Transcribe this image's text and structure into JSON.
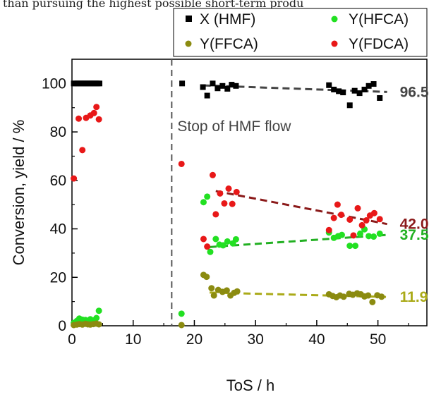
{
  "header_text": "than pursuing the highest possible short-term produ",
  "chart_data": {
    "type": "scatter",
    "xlabel": "ToS / h",
    "ylabel": "Conversion, yield / %",
    "xlim": [
      0,
      58
    ],
    "ylim": [
      0,
      110
    ],
    "x_ticks": [
      "0",
      "10",
      "20",
      "30",
      "40",
      "50"
    ],
    "y_ticks": [
      "0",
      "20",
      "40",
      "60",
      "80",
      "100"
    ],
    "grid": false,
    "legend_position": "top-right",
    "vline": {
      "x": 16.3,
      "label": "Stop of HMF flow"
    },
    "series": [
      {
        "name": "X (HMF)",
        "color": "#000000",
        "marker": "square",
        "points": [
          [
            0.3,
            100
          ],
          [
            0.6,
            100
          ],
          [
            0.9,
            100
          ],
          [
            1.2,
            100
          ],
          [
            1.5,
            100
          ],
          [
            1.8,
            100
          ],
          [
            2.1,
            100
          ],
          [
            2.4,
            100
          ],
          [
            2.7,
            100
          ],
          [
            3.0,
            100
          ],
          [
            3.3,
            100
          ],
          [
            3.6,
            100
          ],
          [
            3.9,
            100
          ],
          [
            4.2,
            100
          ],
          [
            4.5,
            100
          ],
          [
            18.0,
            100
          ],
          [
            21.4,
            98.5
          ],
          [
            22.1,
            95
          ],
          [
            23.0,
            100
          ],
          [
            23.8,
            98
          ],
          [
            24.6,
            99
          ],
          [
            25.4,
            97.8
          ],
          [
            26.1,
            99.5
          ],
          [
            26.8,
            99
          ],
          [
            42.0,
            99.3
          ],
          [
            42.8,
            97.5
          ],
          [
            43.6,
            96.8
          ],
          [
            44.3,
            96.3
          ],
          [
            45.4,
            91
          ],
          [
            46.2,
            97
          ],
          [
            47.0,
            96
          ],
          [
            47.8,
            97.5
          ],
          [
            48.5,
            99
          ],
          [
            49.3,
            99.8
          ],
          [
            50.3,
            94
          ]
        ]
      },
      {
        "name": "Y(HFCA)",
        "color": "#22e022",
        "marker": "circle",
        "points": [
          [
            0.3,
            1.2
          ],
          [
            0.8,
            2.0
          ],
          [
            1.2,
            3.0
          ],
          [
            1.7,
            2.5
          ],
          [
            2.2,
            2.4
          ],
          [
            2.6,
            2.0
          ],
          [
            3.0,
            2.7
          ],
          [
            3.5,
            2.2
          ],
          [
            4.0,
            3.2
          ],
          [
            4.4,
            6.2
          ],
          [
            17.9,
            5.0
          ],
          [
            21.5,
            51
          ],
          [
            22.1,
            53.3
          ],
          [
            22.6,
            30.5
          ],
          [
            23.5,
            35.8
          ],
          [
            24.1,
            33.5
          ],
          [
            24.7,
            33.2
          ],
          [
            25.4,
            34.8
          ],
          [
            26.3,
            34.0
          ],
          [
            26.8,
            35.7
          ],
          [
            42.0,
            38.5
          ],
          [
            42.8,
            36.3
          ],
          [
            43.5,
            37.0
          ],
          [
            44.1,
            37.5
          ],
          [
            45.4,
            33.0
          ],
          [
            46.3,
            33.0
          ],
          [
            47.1,
            38.0
          ],
          [
            47.8,
            39.8
          ],
          [
            48.5,
            37.0
          ],
          [
            49.3,
            36.8
          ],
          [
            50.3,
            38.0
          ]
        ]
      },
      {
        "name": "Y(FFCA)",
        "color": "#8b8b10",
        "marker": "circle",
        "points": [
          [
            0.3,
            0.3
          ],
          [
            0.8,
            0.5
          ],
          [
            1.2,
            0.7
          ],
          [
            1.7,
            0.5
          ],
          [
            2.2,
            0.8
          ],
          [
            2.6,
            0.6
          ],
          [
            3.0,
            0.5
          ],
          [
            3.5,
            0.7
          ],
          [
            4.0,
            0.9
          ],
          [
            4.4,
            0.6
          ],
          [
            17.9,
            0.3
          ],
          [
            21.5,
            21
          ],
          [
            22.0,
            20.2
          ],
          [
            22.8,
            15.5
          ],
          [
            23.2,
            12.5
          ],
          [
            23.9,
            14.8
          ],
          [
            24.6,
            14.0
          ],
          [
            25.3,
            14.6
          ],
          [
            25.9,
            12.5
          ],
          [
            26.5,
            13.6
          ],
          [
            27.0,
            14.2
          ],
          [
            42.0,
            13.0
          ],
          [
            42.6,
            12.3
          ],
          [
            43.2,
            11.8
          ],
          [
            43.8,
            12.5
          ],
          [
            44.4,
            12.0
          ],
          [
            45.3,
            13.2
          ],
          [
            45.9,
            12.8
          ],
          [
            46.6,
            13.4
          ],
          [
            47.2,
            13.0
          ],
          [
            47.8,
            12.1
          ],
          [
            48.4,
            12.5
          ],
          [
            49.1,
            9.8
          ],
          [
            49.9,
            12.6
          ],
          [
            50.6,
            12.0
          ]
        ]
      },
      {
        "name": "Y(FDCA)",
        "color": "#e81818",
        "marker": "circle",
        "points": [
          [
            0.3,
            60.8
          ],
          [
            1.1,
            85.5
          ],
          [
            1.7,
            72.5
          ],
          [
            2.3,
            85.8
          ],
          [
            3.0,
            86.8
          ],
          [
            3.6,
            87.8
          ],
          [
            4.0,
            90.3
          ],
          [
            4.4,
            85.2
          ],
          [
            17.9,
            66.8
          ],
          [
            21.5,
            35.8
          ],
          [
            22.1,
            32.7
          ],
          [
            23.0,
            62.2
          ],
          [
            23.5,
            46.0
          ],
          [
            24.2,
            54.6
          ],
          [
            24.9,
            50.5
          ],
          [
            25.6,
            56.6
          ],
          [
            26.2,
            50.3
          ],
          [
            26.9,
            55.2
          ],
          [
            42.0,
            39.5
          ],
          [
            42.8,
            44.5
          ],
          [
            43.4,
            50.0
          ],
          [
            44.0,
            45.8
          ],
          [
            45.4,
            43.8
          ],
          [
            46.0,
            37.3
          ],
          [
            46.7,
            48.5
          ],
          [
            47.4,
            41.5
          ],
          [
            48.1,
            43.5
          ],
          [
            48.7,
            45.5
          ],
          [
            49.4,
            46.5
          ],
          [
            50.3,
            44.0
          ]
        ]
      }
    ],
    "trendlines": [
      {
        "series": "X (HMF)",
        "color": "#454545",
        "from": [
          21.5,
          99.2
        ],
        "to": [
          51.5,
          96.5
        ],
        "label": "96.5"
      },
      {
        "series": "Y(FDCA)",
        "color": "#8b1a1a",
        "from": [
          23.5,
          55.6
        ],
        "to": [
          51.5,
          42.0
        ],
        "label": "42.0"
      },
      {
        "series": "Y(HFCA)",
        "color": "#22b022",
        "from": [
          22.5,
          32.5
        ],
        "to": [
          51.5,
          37.5
        ],
        "label": "37.5"
      },
      {
        "series": "Y(FFCA)",
        "color": "#aaaa18",
        "from": [
          22.5,
          13.7
        ],
        "to": [
          51.5,
          11.9
        ],
        "label": "11.9"
      }
    ]
  }
}
